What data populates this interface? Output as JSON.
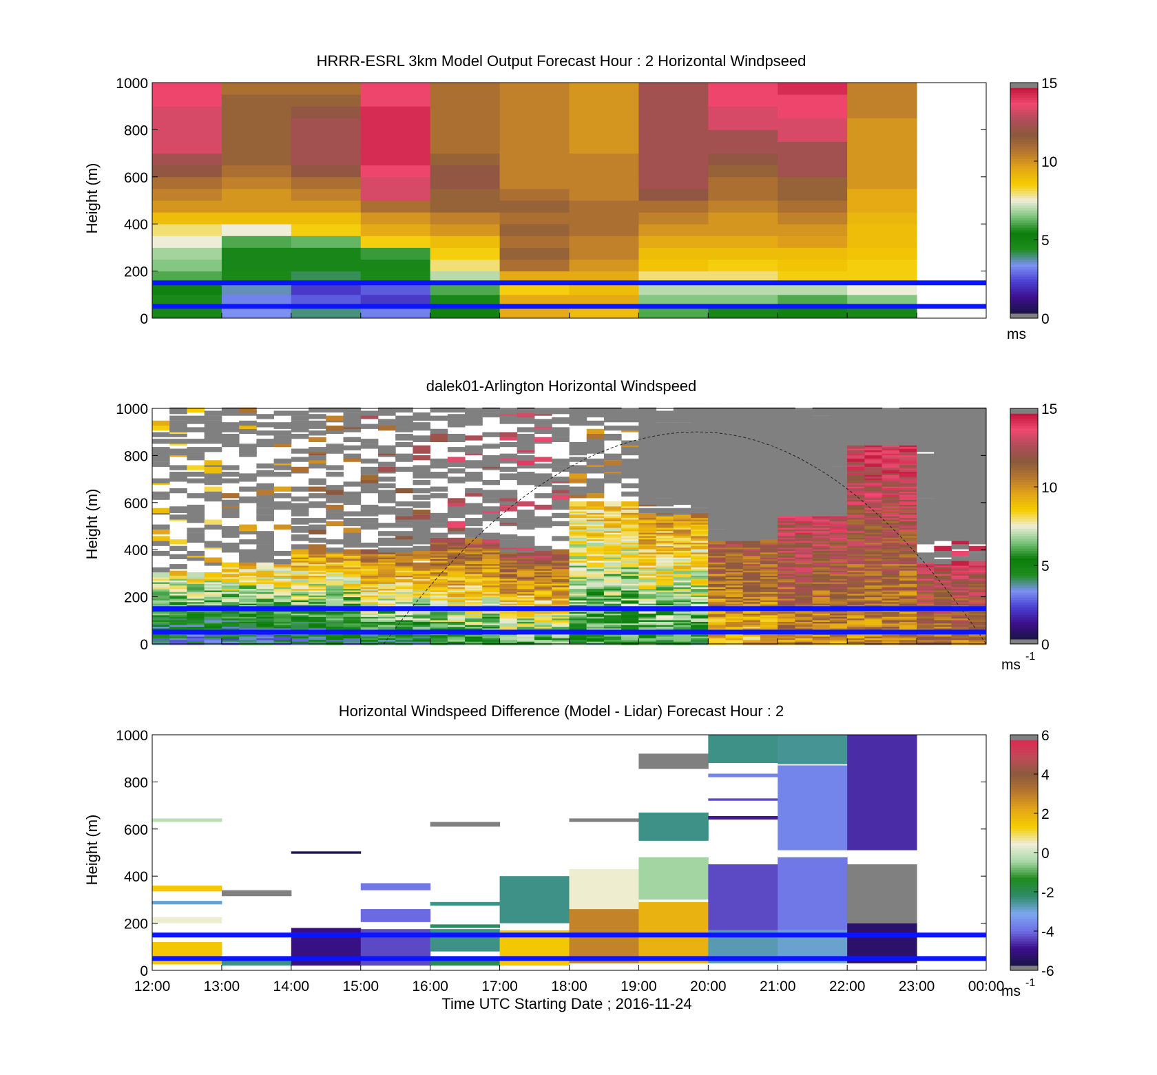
{
  "figure": {
    "xlabel": "Time UTC  Starting Date ; 2016-11-24",
    "xticks": [
      "12:00",
      "13:00",
      "14:00",
      "15:00",
      "16:00",
      "17:00",
      "18:00",
      "19:00",
      "20:00",
      "21:00",
      "22:00",
      "23:00",
      "00:00"
    ]
  },
  "colors": {
    "reference_lines": "#0a14ff",
    "missing": "#808080",
    "speed_colormap": [
      "#191445",
      "#3c0f8c",
      "#4a40d2",
      "#7c92f2",
      "#1e8c1e",
      "#0a7d0a",
      "#7cc47c",
      "#eeeed8",
      "#f5cd00",
      "#e4a518",
      "#b8772e",
      "#8a5a3c",
      "#b04c5a",
      "#f04870",
      "#c0143a",
      "#808080"
    ],
    "diff_colormap": [
      "#808080",
      "#191445",
      "#3c0f8c",
      "#6e6ee6",
      "#7ca8f0",
      "#2e8b6a",
      "#1e8c1e",
      "#a8d8a8",
      "#eeeed8",
      "#f5cd00",
      "#e4a518",
      "#b8772e",
      "#8a5a3c",
      "#c04a5a",
      "#e02850",
      "#808080"
    ]
  },
  "chart_data": [
    {
      "type": "heatmap",
      "title": "HRRR-ESRL 3km Model Output   Forecast Hour : 2 Horizontal Windpseed",
      "ylabel": "Height (m)",
      "ylim": [
        0,
        1000
      ],
      "yticks": [
        "0",
        "200",
        "400",
        "600",
        "800",
        "1000"
      ],
      "xlim_hours": [
        12,
        24
      ],
      "colorbar": {
        "ticks": [
          "0",
          "5",
          "10",
          "15"
        ],
        "unit": "ms",
        "clim": [
          0,
          15
        ]
      },
      "reference_lines_m": [
        150,
        50
      ],
      "x_hours": [
        12,
        13,
        14,
        15,
        16,
        17,
        18,
        19,
        20,
        21,
        22
      ],
      "heights_m": [
        25,
        75,
        125,
        175,
        225,
        275,
        325,
        375,
        425,
        475,
        525,
        575,
        625,
        675,
        725,
        775,
        825,
        875,
        925,
        975
      ],
      "values": [
        [
          5.5,
          3.2,
          3.8,
          3.0,
          5.0,
          9.5,
          9.0,
          6.0,
          5.5,
          5.0,
          5.5
        ],
        [
          4.5,
          3.0,
          2.5,
          2.0,
          5.5,
          9.5,
          9.5,
          6.5,
          6.5,
          6.0,
          6.5
        ],
        [
          5.0,
          3.5,
          2.0,
          2.5,
          6.0,
          8.5,
          9.0,
          7.0,
          7.0,
          7.0,
          7.5
        ],
        [
          6.0,
          4.5,
          4.0,
          4.5,
          7.0,
          9.5,
          9.5,
          8.0,
          8.0,
          8.5,
          8.5
        ],
        [
          6.5,
          5.5,
          5.5,
          5.5,
          8.0,
          11.0,
          10.0,
          8.8,
          8.5,
          8.8,
          8.5
        ],
        [
          6.8,
          5.5,
          5.5,
          5.8,
          8.5,
          11.5,
          10.5,
          9.0,
          9.0,
          9.0,
          8.8
        ],
        [
          7.5,
          6.0,
          6.2,
          8.5,
          9.0,
          11.0,
          10.5,
          9.5,
          9.5,
          9.8,
          9.0
        ],
        [
          8.0,
          7.5,
          8.5,
          9.5,
          10.0,
          11.5,
          11.0,
          10.0,
          10.0,
          10.0,
          9.0
        ],
        [
          9.0,
          9.0,
          9.0,
          10.0,
          10.5,
          11.0,
          11.0,
          10.5,
          10.0,
          10.5,
          9.2
        ],
        [
          10.0,
          10.0,
          10.0,
          11.0,
          11.5,
          11.5,
          11.0,
          11.0,
          10.5,
          11.0,
          9.5
        ],
        [
          10.5,
          10.0,
          10.5,
          13.5,
          11.5,
          11.0,
          10.5,
          12.0,
          11.0,
          11.5,
          9.5
        ],
        [
          11.0,
          10.5,
          11.0,
          13.5,
          12.0,
          10.5,
          10.5,
          12.5,
          11.0,
          11.5,
          10.0
        ],
        [
          12.0,
          11.0,
          12.0,
          14.0,
          12.0,
          10.5,
          10.5,
          12.5,
          11.5,
          12.5,
          10.0
        ],
        [
          12.5,
          11.5,
          12.5,
          14.5,
          11.5,
          10.5,
          10.5,
          12.5,
          12.0,
          12.5,
          10.0
        ],
        [
          13.5,
          11.5,
          12.5,
          14.5,
          11.0,
          10.5,
          10.0,
          12.5,
          12.5,
          12.5,
          10.0
        ],
        [
          13.5,
          11.5,
          12.5,
          14.5,
          11.0,
          10.5,
          10.0,
          12.5,
          12.5,
          13.5,
          10.0
        ],
        [
          13.5,
          11.5,
          12.5,
          14.5,
          11.0,
          10.5,
          10.0,
          12.5,
          13.5,
          13.5,
          10.0
        ],
        [
          13.5,
          11.5,
          12.0,
          14.5,
          11.0,
          10.5,
          10.0,
          12.5,
          13.5,
          14.0,
          10.5
        ],
        [
          14.0,
          11.5,
          11.5,
          14.0,
          11.0,
          10.5,
          10.0,
          12.5,
          14.0,
          14.0,
          10.5
        ],
        [
          14.0,
          11.0,
          11.0,
          14.0,
          11.0,
          10.5,
          10.0,
          12.5,
          14.0,
          14.5,
          10.5
        ]
      ]
    },
    {
      "type": "heatmap",
      "title": "dalek01-Arlington  Horizontal Windspeed",
      "ylabel": "Height (m)",
      "ylim": [
        0,
        1000
      ],
      "yticks": [
        "0",
        "200",
        "400",
        "600",
        "800",
        "1000"
      ],
      "xlim_hours": [
        12,
        24
      ],
      "colorbar": {
        "ticks": [
          "0",
          "5",
          "10",
          "15"
        ],
        "unit": "ms",
        "unit_exponent": "-1",
        "clim": [
          0,
          15
        ]
      },
      "reference_lines_m": [
        150,
        50
      ],
      "x_hours": [
        12.5,
        13.5,
        14.5,
        15.5,
        16.5,
        17.5,
        18.5,
        19.5,
        20.5,
        21.5,
        22.5,
        23.5
      ],
      "approx_boundaries": {
        "near_surface_speed": [
          3,
          3,
          3.5,
          4,
          5,
          5.5,
          5,
          5,
          9,
          10,
          10,
          10.5
        ],
        "mid_level_speed": [
          8,
          9,
          10,
          11,
          12,
          12.5,
          9,
          10,
          12,
          13.5,
          14,
          13.5
        ],
        "valid_data_top_m": [
          300,
          350,
          400,
          400,
          450,
          400,
          600,
          550,
          450,
          550,
          850,
          350
        ],
        "missing_above_m": [
          1000,
          1000,
          1000,
          1000,
          1000,
          1000,
          950,
          600,
          400,
          350,
          400,
          450
        ]
      },
      "annotation": "dashed arc between approx. 15:20 and 24:00 UTC, peaking near 900 m around 19:50 UTC"
    },
    {
      "type": "heatmap",
      "title": "Horizontal Windspeed Difference (Model - Lidar) Forecast Hour : 2",
      "ylabel": "Height (m)",
      "ylim": [
        0,
        1000
      ],
      "yticks": [
        "0",
        "200",
        "400",
        "600",
        "800",
        "1000"
      ],
      "xlim_hours": [
        12,
        24
      ],
      "colorbar": {
        "ticks": [
          "-6",
          "-4",
          "-2",
          "0",
          "2",
          "4",
          "6"
        ],
        "unit": "ms",
        "unit_exponent": "-1",
        "clim": [
          -6,
          6
        ]
      },
      "reference_lines_m": [
        150,
        50
      ],
      "x_hours": [
        12,
        13,
        14,
        15,
        16,
        17,
        18,
        19,
        20,
        21,
        22
      ],
      "columns": [
        {
          "x_hour": 12,
          "segments": [
            [
              25,
              120,
              1.5
            ],
            [
              200,
              225,
              0.5
            ],
            [
              280,
              295,
              -3.0
            ],
            [
              335,
              360,
              1.5
            ],
            [
              630,
              645,
              -0.2
            ]
          ]
        },
        {
          "x_hour": 13,
          "segments": [
            [
              20,
              45,
              -2.5
            ],
            [
              315,
              340,
              6.5
            ]
          ]
        },
        {
          "x_hour": 14,
          "segments": [
            [
              20,
              180,
              -5.2
            ],
            [
              495,
              505,
              -5.8
            ]
          ]
        },
        {
          "x_hour": 15,
          "segments": [
            [
              20,
              175,
              -4.5
            ],
            [
              205,
              260,
              -4.2
            ],
            [
              340,
              370,
              -4.0
            ]
          ]
        },
        {
          "x_hour": 16,
          "segments": [
            [
              20,
              60,
              -2.0
            ],
            [
              80,
              175,
              -2.5
            ],
            [
              180,
              195,
              -2.2
            ],
            [
              275,
              290,
              -2.5
            ],
            [
              610,
              630,
              6.5
            ]
          ]
        },
        {
          "x_hour": 17,
          "segments": [
            [
              20,
              170,
              1.5
            ],
            [
              200,
              400,
              -2.5
            ]
          ]
        },
        {
          "x_hour": 18,
          "segments": [
            [
              30,
              170,
              3.0
            ],
            [
              170,
              260,
              3.0
            ],
            [
              260,
              430,
              0.5
            ],
            [
              630,
              645,
              6.5
            ]
          ]
        },
        {
          "x_hour": 19,
          "segments": [
            [
              30,
              170,
              2.0
            ],
            [
              170,
              290,
              2.0
            ],
            [
              300,
              480,
              -0.5
            ],
            [
              550,
              670,
              -2.5
            ],
            [
              855,
              920,
              6.5
            ]
          ]
        },
        {
          "x_hour": 20,
          "segments": [
            [
              30,
              170,
              -2.8
            ],
            [
              170,
              450,
              -4.5
            ],
            [
              640,
              655,
              -5.0
            ],
            [
              720,
              730,
              -4.5
            ],
            [
              820,
              835,
              -3.8
            ],
            [
              880,
              1000,
              -2.5
            ]
          ]
        },
        {
          "x_hour": 21,
          "segments": [
            [
              30,
              170,
              -3.0
            ],
            [
              170,
              480,
              -4.0
            ],
            [
              510,
              870,
              -3.8
            ],
            [
              875,
              1000,
              -2.6
            ]
          ]
        },
        {
          "x_hour": 22,
          "segments": [
            [
              30,
              200,
              -5.5
            ],
            [
              200,
              450,
              6.5
            ],
            [
              510,
              1000,
              -4.8
            ]
          ]
        }
      ]
    }
  ]
}
